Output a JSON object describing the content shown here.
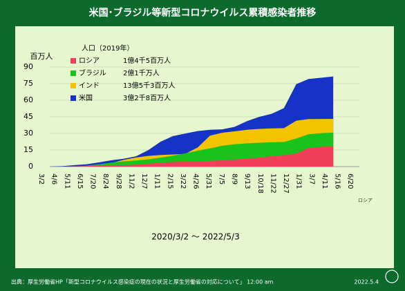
{
  "chart_data": {
    "type": "area",
    "title": "米国･ブラジル等新型コロナウイルス累積感染者推移",
    "subtitle": "2020/3/2 ～ 2022/5/3",
    "y_label": "百万人",
    "legend_title": "人口（2019年）",
    "depth_label": "ロシア",
    "source": "出典：厚生労働省HP「新型コロナウイルス感染症の現在の状況と厚生労働省の対応について」 12:00 am",
    "date": "2022.5.4",
    "categories": [
      "3/2",
      "4/6",
      "5/11",
      "6/15",
      "7/20",
      "8/24",
      "9/28",
      "11/2",
      "12/7",
      "1/11",
      "2/15",
      "3/22",
      "4/26",
      "5/31",
      "7/5",
      "8/9",
      "9/13",
      "10/18",
      "11/22",
      "12/27",
      "1/31",
      "3/7",
      "4/11",
      "5/16",
      "6/20"
    ],
    "ylim": [
      0,
      90
    ],
    "yticks": [
      0,
      15,
      30,
      45,
      60,
      75,
      90
    ],
    "grid": true,
    "series": [
      {
        "name": "米国",
        "population": "3億2千8百万人",
        "color": "#1533c4",
        "values": [
          0,
          0.37,
          1.35,
          2.1,
          3.8,
          5.7,
          7.1,
          9.3,
          14.9,
          22.6,
          27.6,
          29.9,
          32.1,
          33.3,
          33.7,
          35.9,
          41.1,
          45.0,
          47.7,
          52.9,
          74.5,
          79.2,
          80.3,
          81.5,
          null
        ]
      },
      {
        "name": "インド",
        "population": "13億5千3百万人",
        "color": "#f4c300",
        "values": [
          0,
          0.005,
          0.07,
          0.34,
          1.15,
          3.1,
          6.1,
          8.2,
          9.7,
          10.5,
          10.9,
          11.6,
          17.3,
          28.0,
          30.6,
          31.9,
          33.3,
          34.1,
          34.5,
          34.8,
          41.5,
          42.99,
          43.04,
          43.1,
          null
        ]
      },
      {
        "name": "ブラジル",
        "population": "2億1千万人",
        "color": "#18c41c",
        "values": [
          0,
          0.012,
          0.17,
          0.89,
          2.1,
          3.6,
          4.7,
          5.5,
          6.6,
          8.1,
          9.9,
          12.0,
          14.4,
          16.5,
          18.8,
          20.2,
          21.0,
          21.6,
          22.0,
          22.3,
          25.4,
          29.2,
          30.2,
          30.8,
          null
        ]
      },
      {
        "name": "ロシア",
        "population": "1億4千5百万人",
        "color": "#f0405a",
        "values": [
          0,
          0.001,
          0.21,
          0.54,
          0.78,
          0.96,
          1.17,
          1.66,
          2.49,
          3.42,
          4.1,
          4.47,
          4.77,
          5.1,
          5.7,
          6.5,
          7.2,
          8.1,
          9.5,
          10.4,
          11.9,
          17.0,
          17.8,
          18.1,
          null
        ]
      }
    ]
  }
}
